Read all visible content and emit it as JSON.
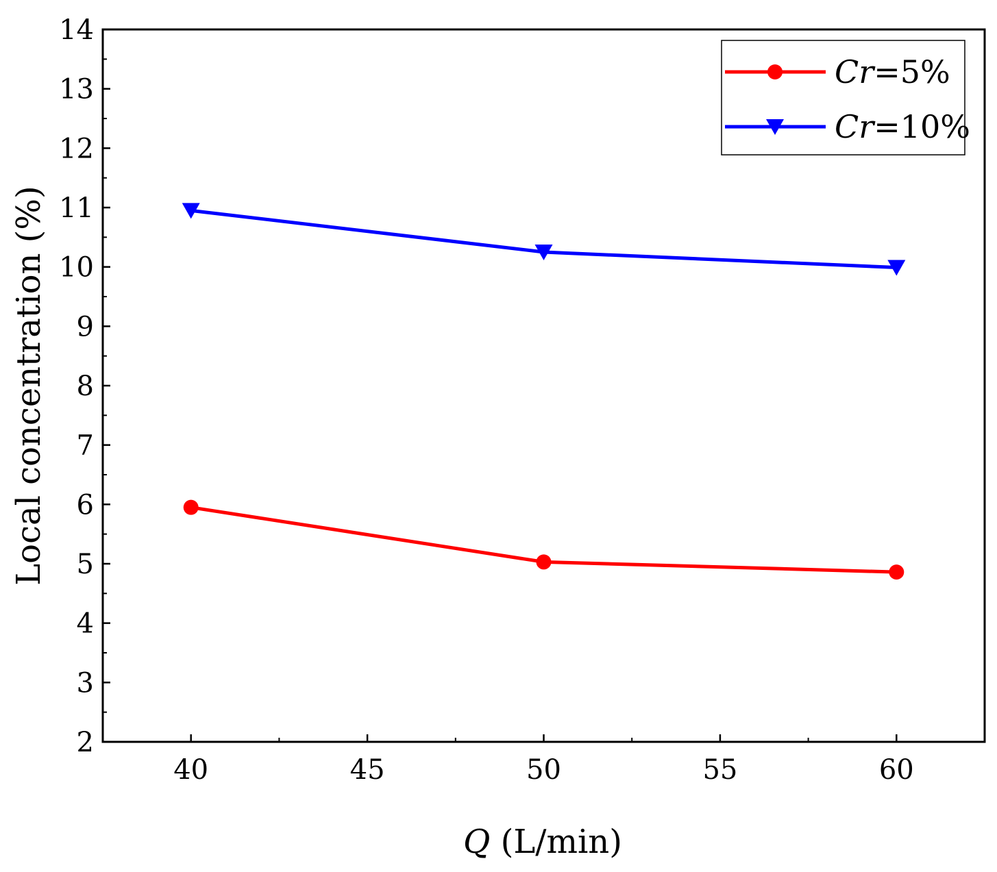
{
  "chart_data": {
    "type": "line",
    "title": "",
    "xlabel": {
      "var": "Q",
      "unit": " (L/min)"
    },
    "ylabel": "Local concentration (%)",
    "xlim": [
      37.5,
      62.5
    ],
    "ylim": [
      2,
      14
    ],
    "xticks": [
      40,
      45,
      50,
      55,
      60
    ],
    "yticks": [
      2,
      3,
      4,
      5,
      6,
      7,
      8,
      9,
      10,
      11,
      12,
      13,
      14
    ],
    "x": [
      40,
      50,
      60
    ],
    "legend_position": "top-right",
    "series": [
      {
        "name": "Cr=5%",
        "legend_var": "Cr",
        "legend_rest": "=5%",
        "color": "#ff0000",
        "marker": "circle",
        "values": [
          5.95,
          5.03,
          4.86
        ]
      },
      {
        "name": "Cr=10%",
        "legend_var": "Cr",
        "legend_rest": "=10%",
        "color": "#0000ff",
        "marker": "triangle-down",
        "values": [
          10.95,
          10.25,
          9.99
        ]
      }
    ]
  }
}
